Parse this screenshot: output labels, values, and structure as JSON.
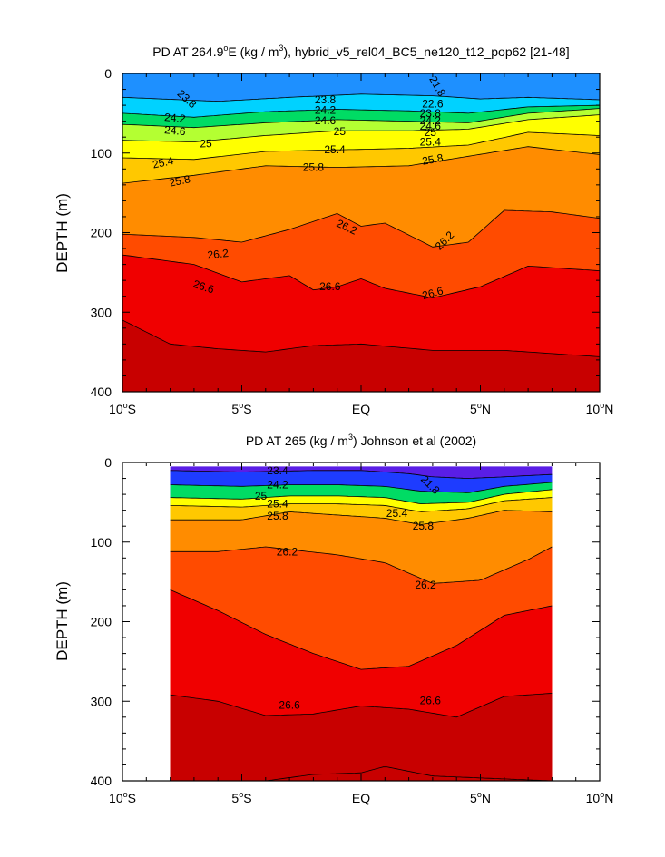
{
  "chart_data": [
    {
      "type": "contour",
      "title": "PD AT 264.9°E (kg / m³), hybrid_v5_rel04_BC5_ne120_t12_pop62 [21-48]",
      "title_parts": {
        "a": "PD AT 264.9",
        "deg": "o",
        "b": "E (kg / m",
        "sup": "3",
        "c": "), hybrid_v5_rel04_BC5_ne120_t12_pop62 [21-48]"
      },
      "ylabel": "DEPTH (m)",
      "xlim": [
        -10,
        10
      ],
      "ylim": [
        400,
        0
      ],
      "x_ticks": [
        {
          "v": -10,
          "deg": "10",
          "hemi": "S"
        },
        {
          "v": -5,
          "deg": "5",
          "hemi": "S"
        },
        {
          "v": 0,
          "text": "EQ"
        },
        {
          "v": 5,
          "deg": "5",
          "hemi": "N"
        },
        {
          "v": 10,
          "deg": "10",
          "hemi": "N"
        }
      ],
      "y_ticks": [
        0,
        100,
        200,
        300,
        400
      ],
      "data_extent_x": [
        -10,
        10
      ],
      "contours": [
        {
          "level": 23.8,
          "depth": [
            [
              -10,
              30
            ],
            [
              -6,
              35
            ],
            [
              -3,
              30
            ],
            [
              0,
              26
            ],
            [
              3,
              28
            ],
            [
              5,
              32
            ],
            [
              7,
              30
            ],
            [
              10,
              33
            ]
          ]
        },
        {
          "level": 24.2,
          "depth": [
            [
              -10,
              50
            ],
            [
              -7,
              55
            ],
            [
              -4,
              48
            ],
            [
              -1,
              45
            ],
            [
              2,
              47
            ],
            [
              4.5,
              50
            ],
            [
              7,
              42
            ],
            [
              10,
              40
            ]
          ]
        },
        {
          "level": 24.6,
          "depth": [
            [
              -10,
              64
            ],
            [
              -7,
              68
            ],
            [
              -4,
              62
            ],
            [
              -1,
              58
            ],
            [
              2,
              60
            ],
            [
              4.5,
              62
            ],
            [
              7,
              50
            ],
            [
              10,
              44
            ]
          ]
        },
        {
          "level": 25.0,
          "depth": [
            [
              -10,
              84
            ],
            [
              -7,
              86
            ],
            [
              -4,
              78
            ],
            [
              -1,
              72
            ],
            [
              2,
              72
            ],
            [
              4.5,
              70
            ],
            [
              7,
              58
            ],
            [
              10,
              52
            ]
          ]
        },
        {
          "level": 25.4,
          "depth": [
            [
              -10,
              106
            ],
            [
              -7,
              108
            ],
            [
              -4,
              98
            ],
            [
              -1,
              96
            ],
            [
              2,
              94
            ],
            [
              4.5,
              90
            ],
            [
              7,
              74
            ],
            [
              10,
              78
            ]
          ]
        },
        {
          "level": 25.8,
          "depth": [
            [
              -10,
              138
            ],
            [
              -7,
              128
            ],
            [
              -4,
              116
            ],
            [
              -1,
              118
            ],
            [
              2,
              116
            ],
            [
              4.5,
              104
            ],
            [
              7,
              92
            ],
            [
              10,
              102
            ]
          ]
        },
        {
          "level": 26.2,
          "depth": [
            [
              -10,
              202
            ],
            [
              -7,
              206
            ],
            [
              -5,
              212
            ],
            [
              -3,
              196
            ],
            [
              -1,
              176
            ],
            [
              0,
              192
            ],
            [
              1,
              188
            ],
            [
              3,
              218
            ],
            [
              4.5,
              212
            ],
            [
              6,
              172
            ],
            [
              8,
              174
            ],
            [
              10,
              182
            ]
          ]
        },
        {
          "level": 26.6,
          "depth": [
            [
              -10,
              228
            ],
            [
              -7,
              240
            ],
            [
              -5,
              262
            ],
            [
              -3,
              254
            ],
            [
              -2,
              272
            ],
            [
              -1,
              268
            ],
            [
              0,
              258
            ],
            [
              1,
              270
            ],
            [
              3,
              282
            ],
            [
              5,
              268
            ],
            [
              7,
              242
            ],
            [
              10,
              248
            ]
          ]
        },
        {
          "level": 27.0,
          "depth": [
            [
              -10,
              310
            ],
            [
              -8,
              340
            ],
            [
              -6,
              346
            ],
            [
              -4,
              350
            ],
            [
              -2,
              342
            ],
            [
              0,
              340
            ],
            [
              3,
              348
            ],
            [
              6,
              348
            ],
            [
              10,
              356
            ]
          ]
        }
      ],
      "contour_labels": [
        {
          "text": "23.8",
          "x": -7.3,
          "depth": 32,
          "rot": 42
        },
        {
          "text": "24.2",
          "x": -7.8,
          "depth": 56,
          "rot": 5
        },
        {
          "text": "24.6",
          "x": -7.8,
          "depth": 72,
          "rot": 5
        },
        {
          "text": "25",
          "x": -6.5,
          "depth": 88,
          "rot": -2
        },
        {
          "text": "25.4",
          "x": -8.3,
          "depth": 112,
          "rot": -12
        },
        {
          "text": "25.8",
          "x": -7.6,
          "depth": 135,
          "rot": -12
        },
        {
          "text": "26.2",
          "x": -6.0,
          "depth": 227,
          "rot": -6
        },
        {
          "text": "26.6",
          "x": -6.6,
          "depth": 268,
          "rot": 18
        },
        {
          "text": "23.8",
          "x": -1.5,
          "depth": 33,
          "rot": 0
        },
        {
          "text": "24.2",
          "x": -1.5,
          "depth": 46,
          "rot": 0
        },
        {
          "text": "24.6",
          "x": -1.5,
          "depth": 59,
          "rot": 0
        },
        {
          "text": "25",
          "x": -0.9,
          "depth": 73,
          "rot": 0
        },
        {
          "text": "25.4",
          "x": -1.1,
          "depth": 96,
          "rot": 0
        },
        {
          "text": "25.8",
          "x": -2.0,
          "depth": 118,
          "rot": 0
        },
        {
          "text": "26.2",
          "x": -0.6,
          "depth": 193,
          "rot": 25
        },
        {
          "text": "26.6",
          "x": -1.3,
          "depth": 268,
          "rot": 0
        },
        {
          "text": "21.8",
          "x": 3.2,
          "depth": 16,
          "rot": 60
        },
        {
          "text": "22.6",
          "x": 3.0,
          "depth": 38,
          "rot": 0
        },
        {
          "text": "23.8",
          "x": 2.9,
          "depth": 50,
          "rot": 0
        },
        {
          "text": "24.2",
          "x": 2.9,
          "depth": 59,
          "rot": 0
        },
        {
          "text": "24.6",
          "x": 2.9,
          "depth": 66,
          "rot": 0
        },
        {
          "text": "25",
          "x": 2.9,
          "depth": 74,
          "rot": 0
        },
        {
          "text": "25.4",
          "x": 2.9,
          "depth": 86,
          "rot": 0
        },
        {
          "text": "25.8",
          "x": 3.0,
          "depth": 108,
          "rot": -10
        },
        {
          "text": "26.2",
          "x": 3.5,
          "depth": 210,
          "rot": -45
        },
        {
          "text": "26.6",
          "x": 3.0,
          "depth": 276,
          "rot": -15
        }
      ]
    },
    {
      "type": "contour",
      "title": "PD AT 265 (kg / m³) Johnson et al (2002)",
      "title_parts": {
        "a": "PD AT 265 (kg / m",
        "sup": "3",
        "c": ") Johnson et al (2002)"
      },
      "ylabel": "DEPTH (m)",
      "xlim": [
        -10,
        10
      ],
      "ylim": [
        400,
        0
      ],
      "x_ticks": [
        {
          "v": -10,
          "deg": "10",
          "hemi": "S"
        },
        {
          "v": -5,
          "deg": "5",
          "hemi": "S"
        },
        {
          "v": 0,
          "text": "EQ"
        },
        {
          "v": 5,
          "deg": "5",
          "hemi": "N"
        },
        {
          "v": 10,
          "deg": "10",
          "hemi": "N"
        }
      ],
      "y_ticks": [
        0,
        100,
        200,
        300,
        400
      ],
      "data_extent_x": [
        -8,
        8
      ],
      "data_top_depth": 5,
      "contours": [
        {
          "level": 23.4,
          "depth": [
            [
              -8,
              10
            ],
            [
              -5,
              12
            ],
            [
              -2,
              10
            ],
            [
              0,
              10
            ],
            [
              2,
              14
            ],
            [
              3,
              18
            ],
            [
              4.5,
              20
            ],
            [
              6,
              18
            ],
            [
              8,
              15
            ]
          ]
        },
        {
          "level": 24.2,
          "depth": [
            [
              -8,
              28
            ],
            [
              -5,
              30
            ],
            [
              -3,
              28
            ],
            [
              -1,
              28
            ],
            [
              1,
              30
            ],
            [
              2.5,
              36
            ],
            [
              4.5,
              38
            ],
            [
              6,
              30
            ],
            [
              8,
              25
            ]
          ]
        },
        {
          "level": 25.0,
          "depth": [
            [
              -8,
              44
            ],
            [
              -5,
              46
            ],
            [
              -3,
              42
            ],
            [
              -1,
              42
            ],
            [
              1,
              44
            ],
            [
              2.5,
              52
            ],
            [
              4.5,
              50
            ],
            [
              6,
              40
            ],
            [
              8,
              34
            ]
          ]
        },
        {
          "level": 25.4,
          "depth": [
            [
              -8,
              54
            ],
            [
              -5,
              56
            ],
            [
              -3,
              52
            ],
            [
              -1,
              52
            ],
            [
              1,
              54
            ],
            [
              2.5,
              62
            ],
            [
              4.5,
              58
            ],
            [
              6,
              48
            ],
            [
              8,
              44
            ]
          ]
        },
        {
          "level": 25.8,
          "depth": [
            [
              -8,
              72
            ],
            [
              -5,
              72
            ],
            [
              -3,
              62
            ],
            [
              -1,
              66
            ],
            [
              1,
              70
            ],
            [
              2.5,
              78
            ],
            [
              4.5,
              70
            ],
            [
              6,
              60
            ],
            [
              8,
              62
            ]
          ]
        },
        {
          "level": 26.2,
          "depth": [
            [
              -8,
              112
            ],
            [
              -6,
              112
            ],
            [
              -4,
              106
            ],
            [
              -1,
              116
            ],
            [
              1,
              126
            ],
            [
              3,
              152
            ],
            [
              5,
              148
            ],
            [
              7,
              122
            ],
            [
              8,
              106
            ]
          ]
        },
        {
          "level": 26.6,
          "depth": [
            [
              -8,
              160
            ],
            [
              -6,
              186
            ],
            [
              -4,
              216
            ],
            [
              -2,
              240
            ],
            [
              0,
              260
            ],
            [
              2,
              256
            ],
            [
              4,
              230
            ],
            [
              6,
              192
            ],
            [
              8,
              180
            ]
          ]
        },
        {
          "level": 27.0,
          "depth": [
            [
              -8,
              292
            ],
            [
              -6,
              300
            ],
            [
              -4,
              318
            ],
            [
              -2,
              316
            ],
            [
              0,
              306
            ],
            [
              2,
              310
            ],
            [
              4,
              320
            ],
            [
              6,
              294
            ],
            [
              8,
              290
            ]
          ]
        },
        {
          "level": 27.4,
          "depth": [
            [
              -8,
              400
            ],
            [
              -4,
              400
            ],
            [
              -2,
              392
            ],
            [
              0,
              390
            ],
            [
              1,
              382
            ],
            [
              3,
              394
            ],
            [
              8,
              400
            ]
          ]
        }
      ],
      "contour_labels": [
        {
          "text": "23.4",
          "x": -3.5,
          "depth": 10,
          "rot": 0
        },
        {
          "text": "24.2",
          "x": -3.5,
          "depth": 28,
          "rot": 0
        },
        {
          "text": "25",
          "x": -4.2,
          "depth": 42,
          "rot": 0
        },
        {
          "text": "25.4",
          "x": -3.5,
          "depth": 52,
          "rot": 0
        },
        {
          "text": "25.8",
          "x": -3.5,
          "depth": 67,
          "rot": 0
        },
        {
          "text": "26.2",
          "x": -3.1,
          "depth": 112,
          "rot": 0
        },
        {
          "text": "26.6",
          "x": -3.0,
          "depth": 305,
          "rot": 0
        },
        {
          "text": "21.8",
          "x": 2.9,
          "depth": 28,
          "rot": 45
        },
        {
          "text": "25.4",
          "x": 1.5,
          "depth": 64,
          "rot": 0
        },
        {
          "text": "25.8",
          "x": 2.6,
          "depth": 80,
          "rot": 0
        },
        {
          "text": "26.2",
          "x": 2.7,
          "depth": 154,
          "rot": 0
        },
        {
          "text": "26.6",
          "x": 2.9,
          "depth": 299,
          "rot": 0
        }
      ]
    }
  ]
}
